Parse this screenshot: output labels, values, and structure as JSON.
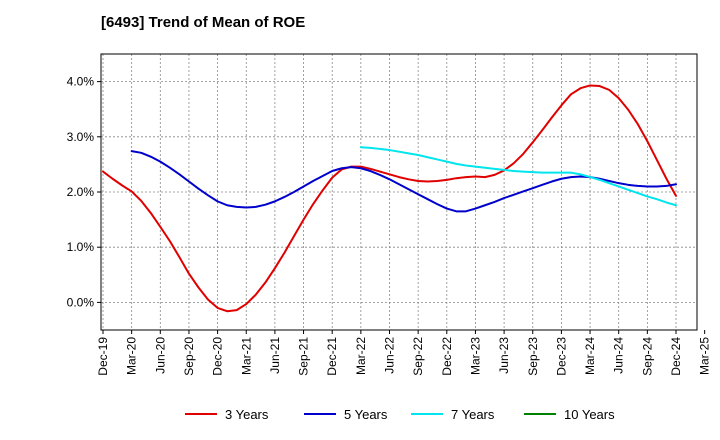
{
  "title": "[6493]  Trend of Mean of ROE",
  "chart_data": {
    "type": "line",
    "title": "[6493]  Trend of Mean of ROE",
    "xlabel": "",
    "ylabel": "",
    "x_ticks": [
      "Dec-19",
      "Mar-20",
      "Jun-20",
      "Sep-20",
      "Dec-20",
      "Mar-21",
      "Jun-21",
      "Sep-21",
      "Dec-21",
      "Mar-22",
      "Jun-22",
      "Sep-22",
      "Dec-22",
      "Mar-23",
      "Jun-23",
      "Sep-23",
      "Dec-23",
      "Mar-24",
      "Jun-24",
      "Sep-24",
      "Dec-24",
      "Mar-25"
    ],
    "y_ticks": [
      0.0,
      1.0,
      2.0,
      3.0,
      4.0
    ],
    "y_tick_labels": [
      "0.0%",
      "1.0%",
      "2.0%",
      "3.0%",
      "4.0%"
    ],
    "ylim": [
      -0.5,
      4.5
    ],
    "grid": "horizontal dashed",
    "legend_position": "bottom",
    "series": [
      {
        "name": "3 Years",
        "color": "#e00000",
        "x": [
          "Dec-19",
          "Jan-20",
          "Feb-20",
          "Mar-20",
          "Apr-20",
          "May-20",
          "Jun-20",
          "Jul-20",
          "Aug-20",
          "Sep-20",
          "Oct-20",
          "Nov-20",
          "Dec-20",
          "Jan-21",
          "Feb-21",
          "Mar-21",
          "Apr-21",
          "May-21",
          "Jun-21",
          "Jul-21",
          "Aug-21",
          "Sep-21",
          "Oct-21",
          "Nov-21",
          "Dec-21",
          "Jan-22",
          "Feb-22",
          "Mar-22",
          "Apr-22",
          "May-22",
          "Jun-22",
          "Jul-22",
          "Aug-22",
          "Sep-22",
          "Oct-22",
          "Nov-22",
          "Dec-22",
          "Jan-23",
          "Feb-23",
          "Mar-23",
          "Apr-23",
          "May-23",
          "Jun-23",
          "Jul-23",
          "Aug-23",
          "Sep-23",
          "Oct-23",
          "Nov-23",
          "Dec-23",
          "Jan-24",
          "Feb-24",
          "Mar-24",
          "Apr-24",
          "May-24",
          "Jun-24",
          "Jul-24",
          "Aug-24",
          "Sep-24",
          "Oct-24",
          "Nov-24",
          "Dec-24"
        ],
        "values": [
          2.37,
          2.24,
          2.12,
          2.01,
          1.84,
          1.62,
          1.37,
          1.11,
          0.82,
          0.52,
          0.27,
          0.05,
          -0.1,
          -0.16,
          -0.14,
          -0.03,
          0.14,
          0.36,
          0.62,
          0.9,
          1.2,
          1.5,
          1.78,
          2.03,
          2.26,
          2.41,
          2.46,
          2.46,
          2.42,
          2.37,
          2.32,
          2.27,
          2.23,
          2.2,
          2.19,
          2.2,
          2.22,
          2.25,
          2.27,
          2.28,
          2.27,
          2.31,
          2.39,
          2.52,
          2.69,
          2.9,
          3.12,
          3.35,
          3.57,
          3.77,
          3.88,
          3.93,
          3.92,
          3.85,
          3.7,
          3.49,
          3.23,
          2.92,
          2.58,
          2.24,
          1.93
        ]
      },
      {
        "name": "5 Years",
        "color": "#0000cc",
        "x": [
          "Mar-20",
          "Apr-20",
          "May-20",
          "Jun-20",
          "Jul-20",
          "Aug-20",
          "Sep-20",
          "Oct-20",
          "Nov-20",
          "Dec-20",
          "Jan-21",
          "Feb-21",
          "Mar-21",
          "Apr-21",
          "May-21",
          "Jun-21",
          "Jul-21",
          "Aug-21",
          "Sep-21",
          "Oct-21",
          "Nov-21",
          "Dec-21",
          "Jan-22",
          "Feb-22",
          "Mar-22",
          "Apr-22",
          "May-22",
          "Jun-22",
          "Jul-22",
          "Aug-22",
          "Sep-22",
          "Oct-22",
          "Nov-22",
          "Dec-22",
          "Jan-23",
          "Feb-23",
          "Mar-23",
          "Apr-23",
          "May-23",
          "Jun-23",
          "Jul-23",
          "Aug-23",
          "Sep-23",
          "Oct-23",
          "Nov-23",
          "Dec-23",
          "Jan-24",
          "Feb-24",
          "Mar-24",
          "Apr-24",
          "May-24",
          "Jun-24",
          "Jul-24",
          "Aug-24",
          "Sep-24",
          "Oct-24",
          "Nov-24",
          "Dec-24"
        ],
        "values": [
          2.74,
          2.71,
          2.64,
          2.55,
          2.44,
          2.32,
          2.19,
          2.06,
          1.94,
          1.83,
          1.76,
          1.73,
          1.72,
          1.73,
          1.77,
          1.83,
          1.91,
          2.0,
          2.1,
          2.2,
          2.29,
          2.38,
          2.43,
          2.45,
          2.43,
          2.38,
          2.31,
          2.23,
          2.14,
          2.05,
          1.96,
          1.87,
          1.78,
          1.7,
          1.65,
          1.65,
          1.7,
          1.76,
          1.82,
          1.89,
          1.95,
          2.01,
          2.07,
          2.13,
          2.19,
          2.24,
          2.27,
          2.28,
          2.27,
          2.24,
          2.2,
          2.16,
          2.13,
          2.11,
          2.1,
          2.1,
          2.11,
          2.14
        ]
      },
      {
        "name": "7 Years",
        "color": "#00e5ee",
        "x": [
          "Mar-22",
          "Apr-22",
          "May-22",
          "Jun-22",
          "Jul-22",
          "Aug-22",
          "Sep-22",
          "Oct-22",
          "Nov-22",
          "Dec-22",
          "Jan-23",
          "Feb-23",
          "Mar-23",
          "Apr-23",
          "May-23",
          "Jun-23",
          "Jul-23",
          "Aug-23",
          "Sep-23",
          "Oct-23",
          "Nov-23",
          "Dec-23",
          "Jan-24",
          "Feb-24",
          "Mar-24",
          "Apr-24",
          "May-24",
          "Jun-24",
          "Jul-24",
          "Aug-24",
          "Sep-24",
          "Oct-24",
          "Nov-24",
          "Dec-24"
        ],
        "values": [
          2.81,
          2.8,
          2.78,
          2.76,
          2.73,
          2.7,
          2.67,
          2.63,
          2.59,
          2.55,
          2.51,
          2.48,
          2.46,
          2.44,
          2.42,
          2.4,
          2.38,
          2.37,
          2.36,
          2.35,
          2.35,
          2.35,
          2.35,
          2.32,
          2.27,
          2.22,
          2.16,
          2.1,
          2.04,
          1.98,
          1.92,
          1.87,
          1.81,
          1.76
        ]
      },
      {
        "name": "10 Years",
        "color": "#008000",
        "x": [],
        "values": []
      }
    ]
  }
}
